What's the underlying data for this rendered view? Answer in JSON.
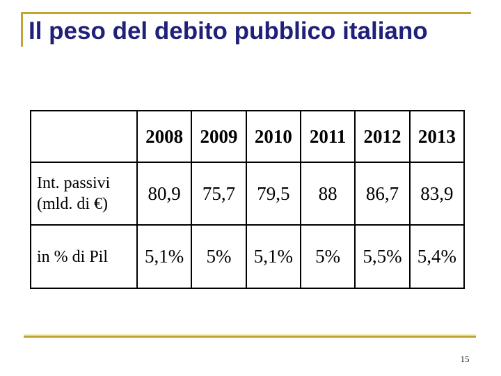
{
  "slide": {
    "title": "Il peso del debito pubblico italiano",
    "page_number": "15"
  },
  "colors": {
    "title_text": "#20207A",
    "accent_gold": "#C2A336",
    "accent_gold_light": "#F5F1C0",
    "table_border": "#000000",
    "background": "#FFFFFF"
  },
  "table": {
    "header": [
      "",
      "2008",
      "2009",
      "2010",
      "2011",
      "2012",
      "2013"
    ],
    "rows": [
      {
        "label": "Int. passivi (mld. di €)",
        "values": [
          "80,9",
          "75,7",
          "79,5",
          "88",
          "86,7",
          "83,9"
        ]
      },
      {
        "label": "in % di Pil",
        "values": [
          "5,1%",
          "5%",
          "5,1%",
          "5%",
          "5,5%",
          "5,4%"
        ]
      }
    ]
  }
}
